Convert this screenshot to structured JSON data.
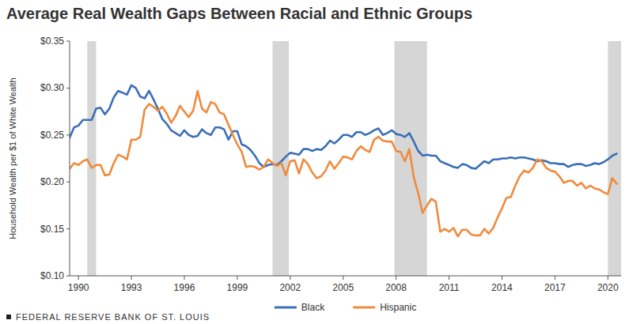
{
  "chart_data": {
    "type": "line",
    "title": "Average Real Wealth Gaps Between Racial and Ethnic Groups",
    "ylabel": "Household Wealth per $1 of White Wealth",
    "source": "FEDERAL RESERVE BANK OF ST. LOUIS",
    "legend": "bottom",
    "grid": false,
    "x": [
      1989.5,
      1989.75,
      1990,
      1990.25,
      1990.5,
      1990.75,
      1991,
      1991.25,
      1991.5,
      1991.75,
      1992,
      1992.25,
      1992.5,
      1992.75,
      1993,
      1993.25,
      1993.5,
      1993.75,
      1994,
      1994.25,
      1994.5,
      1994.75,
      1995,
      1995.25,
      1995.5,
      1995.75,
      1996,
      1996.25,
      1996.5,
      1996.75,
      1997,
      1997.25,
      1997.5,
      1997.75,
      1998,
      1998.25,
      1998.5,
      1998.75,
      1999,
      1999.25,
      1999.5,
      1999.75,
      2000,
      2000.25,
      2000.5,
      2000.75,
      2001,
      2001.25,
      2001.5,
      2001.75,
      2002,
      2002.25,
      2002.5,
      2002.75,
      2003,
      2003.25,
      2003.5,
      2003.75,
      2004,
      2004.25,
      2004.5,
      2004.75,
      2005,
      2005.25,
      2005.5,
      2005.75,
      2006,
      2006.25,
      2006.5,
      2006.75,
      2007,
      2007.25,
      2007.5,
      2007.75,
      2008,
      2008.25,
      2008.5,
      2008.75,
      2009,
      2009.25,
      2009.5,
      2009.75,
      2010,
      2010.25,
      2010.5,
      2010.75,
      2011,
      2011.25,
      2011.5,
      2011.75,
      2012,
      2012.25,
      2012.5,
      2012.75,
      2013,
      2013.25,
      2013.5,
      2013.75,
      2014,
      2014.25,
      2014.5,
      2014.75,
      2015,
      2015.25,
      2015.5,
      2015.75,
      2016,
      2016.25,
      2016.5,
      2016.75,
      2017,
      2017.25,
      2017.5,
      2017.75,
      2018,
      2018.25,
      2018.5,
      2018.75,
      2019,
      2019.25,
      2019.5,
      2019.75,
      2020,
      2020.25,
      2020.5
    ],
    "series": [
      {
        "name": "Black",
        "color": "#3a6fb7",
        "values": [
          0.247,
          0.258,
          0.26,
          0.266,
          0.266,
          0.266,
          0.278,
          0.279,
          0.272,
          0.278,
          0.29,
          0.297,
          0.295,
          0.293,
          0.303,
          0.3,
          0.291,
          0.289,
          0.297,
          0.288,
          0.278,
          0.267,
          0.262,
          0.255,
          0.252,
          0.249,
          0.255,
          0.25,
          0.248,
          0.249,
          0.256,
          0.252,
          0.25,
          0.258,
          0.258,
          0.256,
          0.245,
          0.254,
          0.254,
          0.24,
          0.238,
          0.234,
          0.228,
          0.22,
          0.216,
          0.218,
          0.219,
          0.218,
          0.222,
          0.227,
          0.231,
          0.23,
          0.229,
          0.235,
          0.235,
          0.233,
          0.235,
          0.234,
          0.238,
          0.244,
          0.241,
          0.245,
          0.25,
          0.25,
          0.248,
          0.253,
          0.253,
          0.25,
          0.252,
          0.255,
          0.257,
          0.25,
          0.252,
          0.255,
          0.251,
          0.25,
          0.248,
          0.252,
          0.243,
          0.233,
          0.228,
          0.229,
          0.228,
          0.228,
          0.222,
          0.22,
          0.218,
          0.216,
          0.215,
          0.219,
          0.218,
          0.215,
          0.214,
          0.218,
          0.222,
          0.22,
          0.224,
          0.224,
          0.225,
          0.225,
          0.226,
          0.225,
          0.226,
          0.226,
          0.225,
          0.224,
          0.222,
          0.223,
          0.222,
          0.22,
          0.22,
          0.219,
          0.219,
          0.216,
          0.218,
          0.219,
          0.219,
          0.217,
          0.218,
          0.22,
          0.219,
          0.221,
          0.224,
          0.228,
          0.23
        ]
      },
      {
        "name": "Hispanic",
        "color": "#f08a3c",
        "values": [
          0.214,
          0.22,
          0.218,
          0.222,
          0.224,
          0.215,
          0.218,
          0.218,
          0.207,
          0.208,
          0.22,
          0.229,
          0.227,
          0.224,
          0.245,
          0.245,
          0.248,
          0.277,
          0.283,
          0.28,
          0.276,
          0.28,
          0.273,
          0.263,
          0.27,
          0.281,
          0.275,
          0.269,
          0.276,
          0.297,
          0.278,
          0.274,
          0.285,
          0.283,
          0.274,
          0.272,
          0.261,
          0.25,
          0.24,
          0.232,
          0.216,
          0.217,
          0.216,
          0.213,
          0.216,
          0.224,
          0.22,
          0.217,
          0.22,
          0.207,
          0.222,
          0.223,
          0.209,
          0.224,
          0.219,
          0.21,
          0.204,
          0.206,
          0.212,
          0.222,
          0.214,
          0.22,
          0.227,
          0.226,
          0.224,
          0.233,
          0.238,
          0.234,
          0.232,
          0.245,
          0.248,
          0.244,
          0.243,
          0.243,
          0.233,
          0.232,
          0.222,
          0.235,
          0.205,
          0.188,
          0.167,
          0.175,
          0.182,
          0.179,
          0.147,
          0.15,
          0.147,
          0.151,
          0.142,
          0.149,
          0.149,
          0.144,
          0.143,
          0.143,
          0.15,
          0.145,
          0.151,
          0.162,
          0.172,
          0.183,
          0.184,
          0.196,
          0.206,
          0.212,
          0.21,
          0.215,
          0.224,
          0.222,
          0.215,
          0.212,
          0.211,
          0.206,
          0.199,
          0.201,
          0.201,
          0.196,
          0.199,
          0.193,
          0.196,
          0.193,
          0.192,
          0.189,
          0.187,
          0.204,
          0.198
        ]
      }
    ],
    "recessions": [
      {
        "start": 1990.5,
        "end": 1991.0
      },
      {
        "start": 2001.0,
        "end": 2001.92
      },
      {
        "start": 2007.9,
        "end": 2009.75
      },
      {
        "start": 2020.0,
        "end": 2020.75
      }
    ],
    "xlim": [
      1989.5,
      2020.75
    ],
    "xticks": [
      1990,
      1993,
      1996,
      1999,
      2002,
      2005,
      2008,
      2011,
      2014,
      2017,
      2020
    ],
    "ylim": [
      0.1,
      0.35
    ],
    "yticks": [
      {
        "value": 0.1,
        "label": "$0.10"
      },
      {
        "value": 0.15,
        "label": "$0.15"
      },
      {
        "value": 0.2,
        "label": "$0.20"
      },
      {
        "value": 0.25,
        "label": "$0.25"
      },
      {
        "value": 0.3,
        "label": "$0.30"
      },
      {
        "value": 0.35,
        "label": "$0.35"
      }
    ]
  }
}
